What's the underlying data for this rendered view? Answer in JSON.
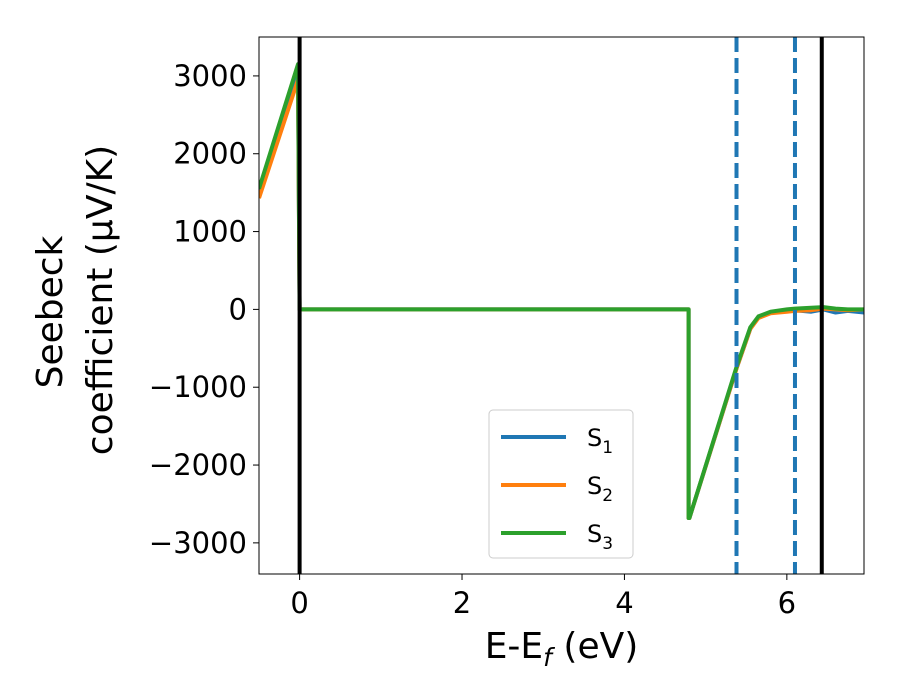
{
  "chart_data": {
    "type": "line",
    "xlabel": {
      "main": "E-E",
      "sub": "f",
      "unit": " (eV)"
    },
    "ylabel": {
      "line1": "Seebeck",
      "line2": "coefficient  (μV/K)"
    },
    "xlim": [
      -0.5,
      6.95
    ],
    "ylim": [
      -3400,
      3500
    ],
    "xticks": [
      0,
      2,
      4,
      6
    ],
    "xtick_labels": [
      "0",
      "2",
      "4",
      "6"
    ],
    "yticks": [
      3000,
      2000,
      1000,
      0,
      -1000,
      -2000,
      -3000
    ],
    "ytick_labels": [
      "3000",
      "2000",
      "1000",
      "0",
      "−1000",
      "−2000",
      "−3000"
    ],
    "grid": false,
    "legend_position": "lower-center",
    "series": [
      {
        "name": "S",
        "sub": "1",
        "color": "#1f77b4",
        "x": [
          -0.5,
          -0.02,
          0.0,
          0.02,
          4.79,
          4.79,
          4.8,
          5.38,
          5.55,
          5.65,
          5.8,
          6.0,
          6.1,
          6.3,
          6.45,
          6.6,
          6.75,
          6.95
        ],
        "y": [
          1480,
          3050,
          0,
          0,
          0,
          -2680,
          -2680,
          -760,
          -250,
          -100,
          -40,
          -20,
          -10,
          -30,
          0,
          -40,
          -20,
          -40
        ]
      },
      {
        "name": "S",
        "sub": "2",
        "color": "#ff7f0e",
        "x": [
          -0.5,
          -0.02,
          0.0,
          0.02,
          4.79,
          4.79,
          4.8,
          5.38,
          5.55,
          5.65,
          5.8,
          6.0,
          6.1,
          6.3,
          6.45,
          6.6,
          6.75,
          6.95
        ],
        "y": [
          1430,
          2950,
          0,
          0,
          0,
          -2680,
          -2680,
          -760,
          -250,
          -110,
          -50,
          -30,
          -20,
          -10,
          10,
          0,
          -10,
          0
        ]
      },
      {
        "name": "S",
        "sub": "3",
        "color": "#2ca02c",
        "x": [
          -0.5,
          -0.02,
          0.0,
          0.02,
          4.79,
          4.79,
          4.8,
          5.38,
          5.55,
          5.65,
          5.8,
          6.0,
          6.1,
          6.3,
          6.45,
          6.6,
          6.75,
          6.95
        ],
        "y": [
          1550,
          3150,
          0,
          0,
          0,
          -2680,
          -2680,
          -740,
          -230,
          -90,
          -30,
          0,
          10,
          20,
          30,
          10,
          0,
          0
        ]
      }
    ],
    "vlines": [
      {
        "x": 0.0,
        "style": "solid",
        "color": "#000000"
      },
      {
        "x": 6.43,
        "style": "solid",
        "color": "#000000"
      },
      {
        "x": 5.38,
        "style": "dashed",
        "color": "#1f77b4"
      },
      {
        "x": 6.1,
        "style": "dashed",
        "color": "#1f77b4"
      }
    ]
  }
}
